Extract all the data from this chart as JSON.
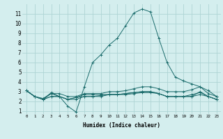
{
  "xlabel": "Humidex (Indice chaleur)",
  "bg_color": "#d4eeee",
  "grid_color": "#aed4d4",
  "line_color": "#1a6b6b",
  "xlim": [
    -0.5,
    23.5
  ],
  "ylim": [
    0.7,
    12.0
  ],
  "xticks": [
    0,
    1,
    2,
    3,
    4,
    5,
    6,
    7,
    8,
    9,
    10,
    11,
    12,
    13,
    14,
    15,
    16,
    17,
    18,
    19,
    20,
    21,
    22,
    23
  ],
  "yticks": [
    1,
    2,
    3,
    4,
    5,
    6,
    7,
    8,
    9,
    10,
    11
  ],
  "series": [
    {
      "x": [
        0,
        1,
        2,
        3,
        4,
        5,
        6,
        7,
        8,
        9,
        10,
        11,
        12,
        13,
        14,
        15,
        16,
        17,
        18,
        19,
        20,
        21,
        22,
        23
      ],
      "y": [
        3.1,
        2.5,
        2.2,
        2.9,
        2.5,
        1.5,
        0.9,
        3.5,
        6.0,
        6.8,
        7.8,
        8.5,
        9.8,
        11.1,
        11.5,
        11.2,
        8.5,
        6.0,
        4.5,
        4.1,
        3.8,
        3.5,
        3.1,
        2.5
      ]
    },
    {
      "x": [
        0,
        1,
        2,
        3,
        4,
        5,
        6,
        7,
        8,
        9,
        10,
        11,
        12,
        13,
        14,
        15,
        16,
        17,
        18,
        19,
        20,
        21,
        22,
        23
      ],
      "y": [
        3.1,
        2.5,
        2.3,
        2.8,
        2.8,
        2.5,
        2.5,
        2.8,
        2.8,
        2.8,
        3.0,
        3.0,
        3.1,
        3.3,
        3.5,
        3.5,
        3.3,
        3.0,
        3.0,
        3.0,
        3.2,
        3.5,
        2.8,
        2.5
      ]
    },
    {
      "x": [
        0,
        1,
        2,
        3,
        4,
        5,
        6,
        7,
        8,
        9,
        10,
        11,
        12,
        13,
        14,
        15,
        16,
        17,
        18,
        19,
        20,
        21,
        22,
        23
      ],
      "y": [
        3.1,
        2.5,
        2.2,
        2.5,
        2.5,
        2.2,
        2.2,
        2.5,
        2.5,
        2.5,
        2.7,
        2.7,
        2.8,
        2.9,
        3.0,
        3.0,
        2.8,
        2.5,
        2.5,
        2.5,
        2.5,
        3.0,
        2.5,
        2.2
      ]
    },
    {
      "x": [
        0,
        1,
        2,
        3,
        4,
        5,
        6,
        7,
        8,
        9,
        10,
        11,
        12,
        13,
        14,
        15,
        16,
        17,
        18,
        19,
        20,
        21,
        22,
        23
      ],
      "y": [
        3.1,
        2.5,
        2.2,
        2.5,
        2.5,
        2.2,
        2.4,
        2.5,
        2.5,
        2.6,
        2.7,
        2.7,
        2.8,
        2.9,
        3.0,
        3.0,
        2.8,
        2.5,
        2.5,
        2.5,
        2.7,
        2.9,
        2.5,
        2.2
      ]
    },
    {
      "x": [
        0,
        1,
        2,
        3,
        4,
        5,
        6,
        7,
        8,
        9,
        10,
        11,
        12,
        13,
        14,
        15,
        16,
        17,
        18,
        19,
        20,
        21,
        22,
        23
      ],
      "y": [
        3.1,
        2.5,
        2.2,
        2.8,
        2.5,
        2.2,
        2.4,
        2.7,
        2.7,
        2.7,
        2.7,
        2.7,
        2.7,
        2.8,
        2.9,
        2.9,
        2.8,
        2.5,
        2.5,
        2.5,
        2.5,
        2.7,
        2.5,
        2.2
      ]
    }
  ]
}
